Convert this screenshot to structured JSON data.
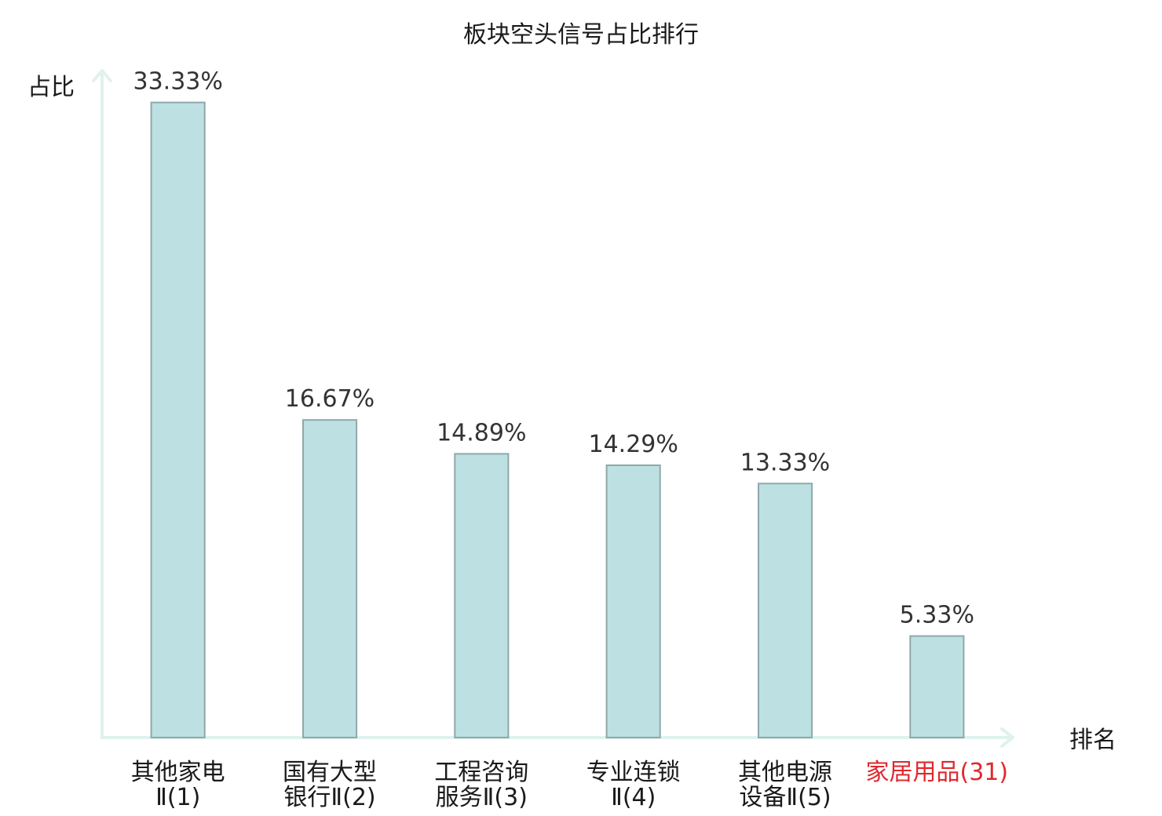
{
  "chart_data": {
    "type": "bar",
    "title": "板块空头信号占比排行",
    "xlabel": "排名",
    "ylabel": "占比",
    "categories": [
      [
        "其他家电",
        "Ⅱ(1)"
      ],
      [
        "国有大型",
        "银行Ⅱ(2)"
      ],
      [
        "工程咨询",
        "服务Ⅱ(3)"
      ],
      [
        "专业连锁",
        "Ⅱ(4)"
      ],
      [
        "其他电源",
        "设备Ⅱ(5)"
      ],
      [
        "家居用品(31)"
      ]
    ],
    "values": [
      33.33,
      16.67,
      14.89,
      14.29,
      13.33,
      5.33
    ],
    "data_labels": [
      "33.33%",
      "16.67%",
      "14.89%",
      "14.29%",
      "13.33%",
      "5.33%"
    ],
    "ylim": [
      0,
      35
    ],
    "grid": false,
    "highlighted_categories": [
      5
    ],
    "colors": {
      "bar_fill": "#bde0e3",
      "bar_stroke": "#8fa8a9",
      "axis": "#dff2ee",
      "text": "#1a1a1a",
      "data_label": "#333333",
      "highlight": "#e0282e"
    }
  }
}
